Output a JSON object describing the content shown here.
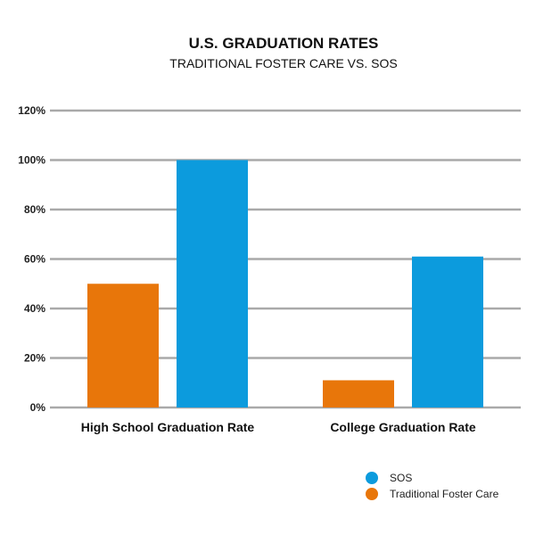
{
  "chart_data": {
    "type": "bar",
    "title": "U.S. GRADUATION RATES",
    "subtitle": "TRADITIONAL FOSTER CARE VS. SOS",
    "categories": [
      "High School Graduation Rate",
      "College Graduation Rate"
    ],
    "series": [
      {
        "name": "Traditional Foster Care",
        "color": "#E8760A",
        "values": [
          50,
          11
        ]
      },
      {
        "name": "SOS",
        "color": "#0C9BDD",
        "values": [
          100,
          61
        ]
      }
    ],
    "ylim": [
      0,
      120
    ],
    "y_ticks": [
      0,
      20,
      40,
      60,
      80,
      100,
      120
    ],
    "y_tick_labels": [
      "0%",
      "20%",
      "40%",
      "60%",
      "80%",
      "100%",
      "120%"
    ],
    "grid": true,
    "legend": {
      "position": "bottom-right",
      "order": [
        "SOS",
        "Traditional Foster Care"
      ]
    }
  }
}
